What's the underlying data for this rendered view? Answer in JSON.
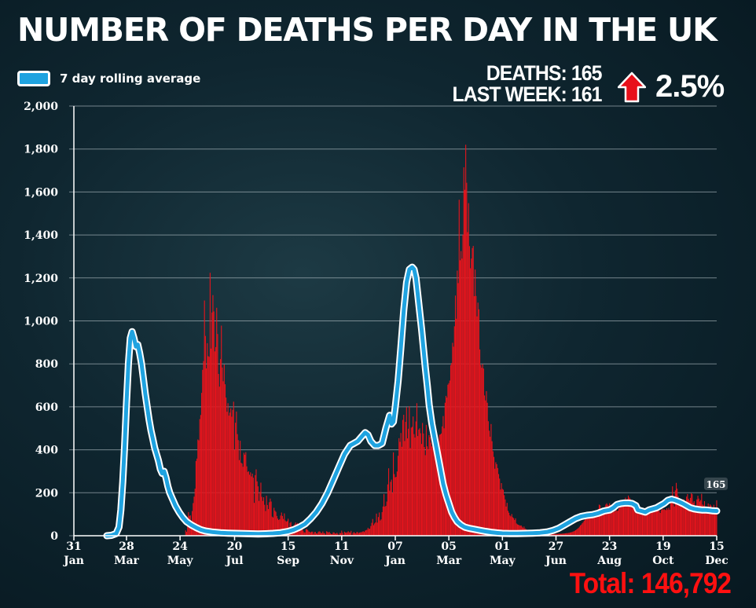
{
  "title": "NUMBER OF DEATHS PER DAY IN THE UK",
  "legend": {
    "label": "7 day rolling average",
    "color": "#1fa3e0"
  },
  "stats": {
    "deaths_line": "DEATHS: 165",
    "last_week_line": "LAST WEEK: 161",
    "change_pct": "2.5%",
    "arrow_icon": "up-arrow-icon",
    "arrow_color": "#e8101a"
  },
  "total_text": "Total: 146,792",
  "last_value_label": "165",
  "colors": {
    "bar": "#e8141c",
    "line": "#1fa3e0",
    "line_outline": "#ffffff",
    "total": "#ff1010"
  },
  "chart_data": {
    "type": "bar",
    "title": "NUMBER OF DEATHS PER DAY IN THE UK",
    "xlabel": "",
    "ylabel": "",
    "ylim": [
      0,
      2000
    ],
    "yticks": [
      0,
      200,
      400,
      600,
      800,
      1000,
      1200,
      1400,
      1600,
      1800,
      2000
    ],
    "ytick_labels": [
      "0",
      "200",
      "400",
      "600",
      "800",
      "1,000",
      "1,200",
      "1,400",
      "1,600",
      "1,800",
      "2,000"
    ],
    "x_range_days": [
      0,
      684
    ],
    "xticks": [
      {
        "day": 0,
        "d": "31",
        "m": "Jan"
      },
      {
        "day": 56,
        "d": "28",
        "m": "Mar"
      },
      {
        "day": 113,
        "d": "24",
        "m": "May"
      },
      {
        "day": 171,
        "d": "20",
        "m": "Jul"
      },
      {
        "day": 228,
        "d": "15",
        "m": "Sep"
      },
      {
        "day": 285,
        "d": "11",
        "m": "Nov"
      },
      {
        "day": 342,
        "d": "07",
        "m": "Jan"
      },
      {
        "day": 399,
        "d": "05",
        "m": "Mar"
      },
      {
        "day": 456,
        "d": "01",
        "m": "May"
      },
      {
        "day": 513,
        "d": "27",
        "m": "Jun"
      },
      {
        "day": 570,
        "d": "23",
        "m": "Aug"
      },
      {
        "day": 627,
        "d": "19",
        "m": "Oct"
      },
      {
        "day": 684,
        "d": "15",
        "m": "Dec"
      }
    ],
    "series": [
      {
        "name": "Daily deaths",
        "type": "bar",
        "values": [
          25,
          18,
          65,
          110,
          92,
          95,
          60,
          115,
          152,
          182,
          219,
          348,
          359,
          448,
          444,
          543,
          562,
          665,
          772,
          813,
          1095,
          930,
          779,
          896,
          836,
          833,
          1224,
          871,
          1039,
          1120,
          1044,
          858,
          878,
          1061,
          939,
          753,
          694,
          822,
          978,
          783,
          719,
          797,
          705,
          643,
          577,
          617,
          559,
          573,
          593,
          554,
          586,
          624,
          400,
          526,
          578,
          473,
          445,
          352,
          442,
          340,
          336,
          321,
          386,
          377,
          389,
          323,
          297,
          300,
          284,
          295,
          276,
          289,
          270,
          153,
          282,
          309,
          253,
          230,
          162,
          204,
          247,
          181,
          162,
          179,
          144,
          115,
          186,
          143,
          124,
          156,
          173,
          159,
          89,
          85,
          130,
          117,
          111,
          92,
          80,
          73,
          77,
          94,
          108,
          92,
          78,
          104,
          71,
          66,
          68,
          79,
          40,
          60,
          64,
          44,
          35,
          47,
          53,
          62,
          54,
          59,
          21,
          23,
          50,
          56,
          52,
          24,
          16,
          15,
          30,
          31,
          26,
          20,
          18,
          15,
          19,
          19,
          9,
          17,
          18,
          11,
          10,
          17,
          21,
          19,
          12,
          13,
          20,
          12,
          12,
          5,
          21,
          18,
          15,
          18,
          11,
          8,
          8,
          16,
          15,
          10,
          10,
          14,
          9,
          1,
          13,
          12,
          24,
          14,
          4,
          19,
          15,
          15,
          16,
          21,
          16,
          15,
          23,
          4,
          13,
          17,
          13,
          11,
          17,
          17,
          12,
          15,
          16,
          16,
          19,
          21,
          17,
          24,
          26,
          28,
          37,
          31,
          33,
          45,
          60,
          78,
          49,
          57,
          62,
          103,
          61,
          87,
          108,
          71,
          76,
          110,
          136,
          194,
          135,
          139,
          159,
          239,
          314,
          210,
          251,
          261,
          200,
          388,
          287,
          272,
          274,
          299,
          372,
          454,
          437,
          478,
          414,
          539,
          563,
          441,
          530,
          598,
          453,
          498,
          603,
          408,
          503,
          507,
          555,
          473,
          457,
          532,
          617,
          464,
          494,
          500,
          477,
          427,
          525,
          476,
          413,
          375,
          516,
          416,
          403,
          468,
          459,
          433,
          416,
          574,
          439,
          426,
          417,
          389,
          402,
          433,
          470,
          472,
          476,
          509,
          557,
          500,
          619,
          651,
          643,
          703,
          710,
          722,
          794,
          804,
          898,
          880,
          975,
          1118,
          1010,
          1234,
          1176,
          1564,
          1282,
          1325,
          1290,
          1401,
          1715,
          1610,
          1820,
          1643,
          1413,
          1548,
          1348,
          1245,
          1290,
          1339,
          1349,
          1115,
          1239,
          1116,
          1021,
          1085,
          1054,
          867,
          795,
          782,
          799,
          778,
          653,
          630,
          673,
          619,
          533,
          489,
          461,
          520,
          440,
          393,
          367,
          312,
          342,
          333,
          315,
          287,
          266,
          215,
          245,
          218,
          214,
          189,
          169,
          136,
          153,
          116,
          107,
          95,
          90,
          101,
          86,
          82,
          73,
          81,
          57,
          53,
          51,
          49,
          47,
          48,
          42,
          36,
          43,
          34,
          31,
          28,
          26,
          27,
          27,
          22,
          23,
          21,
          18,
          16,
          14,
          13,
          15,
          13,
          13,
          12,
          12,
          10,
          11,
          9,
          10,
          9,
          9,
          10,
          8,
          8,
          8,
          9,
          8,
          8,
          8,
          8,
          8,
          8,
          9,
          9,
          9,
          9,
          9,
          10,
          10,
          11,
          11,
          12,
          12,
          13,
          14,
          15,
          16,
          17,
          19,
          21,
          23,
          26,
          29,
          33,
          37,
          42,
          48,
          52,
          58,
          64,
          70,
          76,
          78,
          84,
          84,
          87,
          86,
          85,
          88,
          95,
          96,
          96,
          101,
          104,
          119,
          124,
          145,
          142,
          121,
          122,
          127,
          129,
          134,
          145,
          151,
          144,
          140,
          151,
          144,
          140,
          120,
          119,
          112,
          114,
          121,
          115,
          117,
          127,
          131,
          141,
          145,
          142,
          151,
          166,
          177,
          167,
          171,
          187,
          178,
          173,
          163,
          166,
          158,
          162,
          148,
          152,
          138,
          137,
          132,
          134,
          126,
          126,
          120,
          124,
          119,
          122,
          118,
          116,
          117,
          123,
          118,
          116,
          117,
          123,
          120,
          122,
          118,
          114,
          116,
          117,
          115,
          106,
          119,
          124,
          121,
          124,
          121,
          119,
          128,
          120,
          130,
          121,
          166,
          185,
          230,
          149,
          136,
          211,
          246,
          219,
          185,
          172,
          139,
          160,
          164,
          151,
          170,
          144,
          152,
          182,
          194,
          172,
          163,
          176,
          198,
          194,
          153,
          161,
          125,
          138,
          169,
          186,
          173,
          159,
          166,
          195,
          145,
          140,
          161,
          113,
          119,
          117,
          150,
          122,
          146,
          141,
          128,
          104,
          144,
          107,
          122,
          165
        ],
        "note": "Daily values starting 2020-03-02 (day 31); last value 165 on day 684 (15 Dec 2021). Intermediate values estimated from the rolling average and bar heights."
      },
      {
        "name": "7 day rolling average",
        "type": "line",
        "points": [
          [
            35,
            0
          ],
          [
            40,
            2
          ],
          [
            45,
            10
          ],
          [
            48,
            40
          ],
          [
            50,
            120
          ],
          [
            52,
            250
          ],
          [
            54,
            420
          ],
          [
            56,
            620
          ],
          [
            58,
            800
          ],
          [
            60,
            920
          ],
          [
            62,
            950
          ],
          [
            64,
            920
          ],
          [
            66,
            880
          ],
          [
            68,
            890
          ],
          [
            70,
            850
          ],
          [
            72,
            800
          ],
          [
            74,
            730
          ],
          [
            76,
            660
          ],
          [
            78,
            600
          ],
          [
            80,
            540
          ],
          [
            82,
            490
          ],
          [
            84,
            450
          ],
          [
            86,
            410
          ],
          [
            88,
            380
          ],
          [
            90,
            350
          ],
          [
            92,
            310
          ],
          [
            94,
            290
          ],
          [
            96,
            300
          ],
          [
            98,
            270
          ],
          [
            100,
            230
          ],
          [
            102,
            200
          ],
          [
            105,
            170
          ],
          [
            108,
            140
          ],
          [
            112,
            110
          ],
          [
            116,
            85
          ],
          [
            120,
            65
          ],
          [
            125,
            50
          ],
          [
            130,
            38
          ],
          [
            135,
            28
          ],
          [
            140,
            22
          ],
          [
            148,
            17
          ],
          [
            156,
            14
          ],
          [
            164,
            12
          ],
          [
            172,
            11
          ],
          [
            180,
            10
          ],
          [
            188,
            9
          ],
          [
            196,
            8
          ],
          [
            204,
            9
          ],
          [
            212,
            11
          ],
          [
            220,
            14
          ],
          [
            228,
            20
          ],
          [
            234,
            28
          ],
          [
            240,
            40
          ],
          [
            246,
            55
          ],
          [
            252,
            80
          ],
          [
            258,
            110
          ],
          [
            264,
            150
          ],
          [
            270,
            200
          ],
          [
            276,
            260
          ],
          [
            282,
            320
          ],
          [
            288,
            380
          ],
          [
            294,
            420
          ],
          [
            298,
            430
          ],
          [
            302,
            440
          ],
          [
            306,
            460
          ],
          [
            310,
            480
          ],
          [
            313,
            470
          ],
          [
            316,
            440
          ],
          [
            320,
            420
          ],
          [
            324,
            420
          ],
          [
            328,
            430
          ],
          [
            332,
            500
          ],
          [
            336,
            560
          ],
          [
            338,
            520
          ],
          [
            340,
            530
          ],
          [
            342,
            600
          ],
          [
            345,
            720
          ],
          [
            348,
            880
          ],
          [
            351,
            1050
          ],
          [
            354,
            1180
          ],
          [
            357,
            1240
          ],
          [
            360,
            1250
          ],
          [
            362,
            1240
          ],
          [
            364,
            1200
          ],
          [
            366,
            1120
          ],
          [
            368,
            1040
          ],
          [
            370,
            960
          ],
          [
            372,
            870
          ],
          [
            374,
            780
          ],
          [
            376,
            700
          ],
          [
            378,
            610
          ],
          [
            381,
            520
          ],
          [
            384,
            450
          ],
          [
            387,
            380
          ],
          [
            390,
            310
          ],
          [
            393,
            240
          ],
          [
            396,
            190
          ],
          [
            399,
            150
          ],
          [
            402,
            110
          ],
          [
            405,
            85
          ],
          [
            408,
            65
          ],
          [
            412,
            50
          ],
          [
            416,
            40
          ],
          [
            420,
            35
          ],
          [
            426,
            30
          ],
          [
            432,
            25
          ],
          [
            438,
            20
          ],
          [
            444,
            16
          ],
          [
            450,
            13
          ],
          [
            456,
            11
          ],
          [
            464,
            10
          ],
          [
            472,
            10
          ],
          [
            480,
            11
          ],
          [
            488,
            12
          ],
          [
            496,
            14
          ],
          [
            504,
            18
          ],
          [
            510,
            25
          ],
          [
            516,
            35
          ],
          [
            522,
            50
          ],
          [
            528,
            65
          ],
          [
            534,
            80
          ],
          [
            540,
            90
          ],
          [
            546,
            95
          ],
          [
            552,
            98
          ],
          [
            558,
            105
          ],
          [
            564,
            115
          ],
          [
            570,
            120
          ],
          [
            574,
            130
          ],
          [
            578,
            145
          ],
          [
            582,
            150
          ],
          [
            586,
            152
          ],
          [
            590,
            152
          ],
          [
            594,
            150
          ],
          [
            598,
            140
          ],
          [
            600,
            120
          ],
          [
            604,
            115
          ],
          [
            608,
            110
          ],
          [
            612,
            120
          ],
          [
            616,
            125
          ],
          [
            620,
            130
          ],
          [
            624,
            140
          ],
          [
            628,
            150
          ],
          [
            632,
            165
          ],
          [
            636,
            170
          ],
          [
            640,
            165
          ],
          [
            644,
            158
          ],
          [
            648,
            150
          ],
          [
            652,
            140
          ],
          [
            656,
            130
          ],
          [
            660,
            125
          ],
          [
            664,
            122
          ],
          [
            668,
            120
          ],
          [
            672,
            120
          ],
          [
            676,
            118
          ],
          [
            680,
            116
          ],
          [
            684,
            115
          ]
        ]
      }
    ]
  }
}
